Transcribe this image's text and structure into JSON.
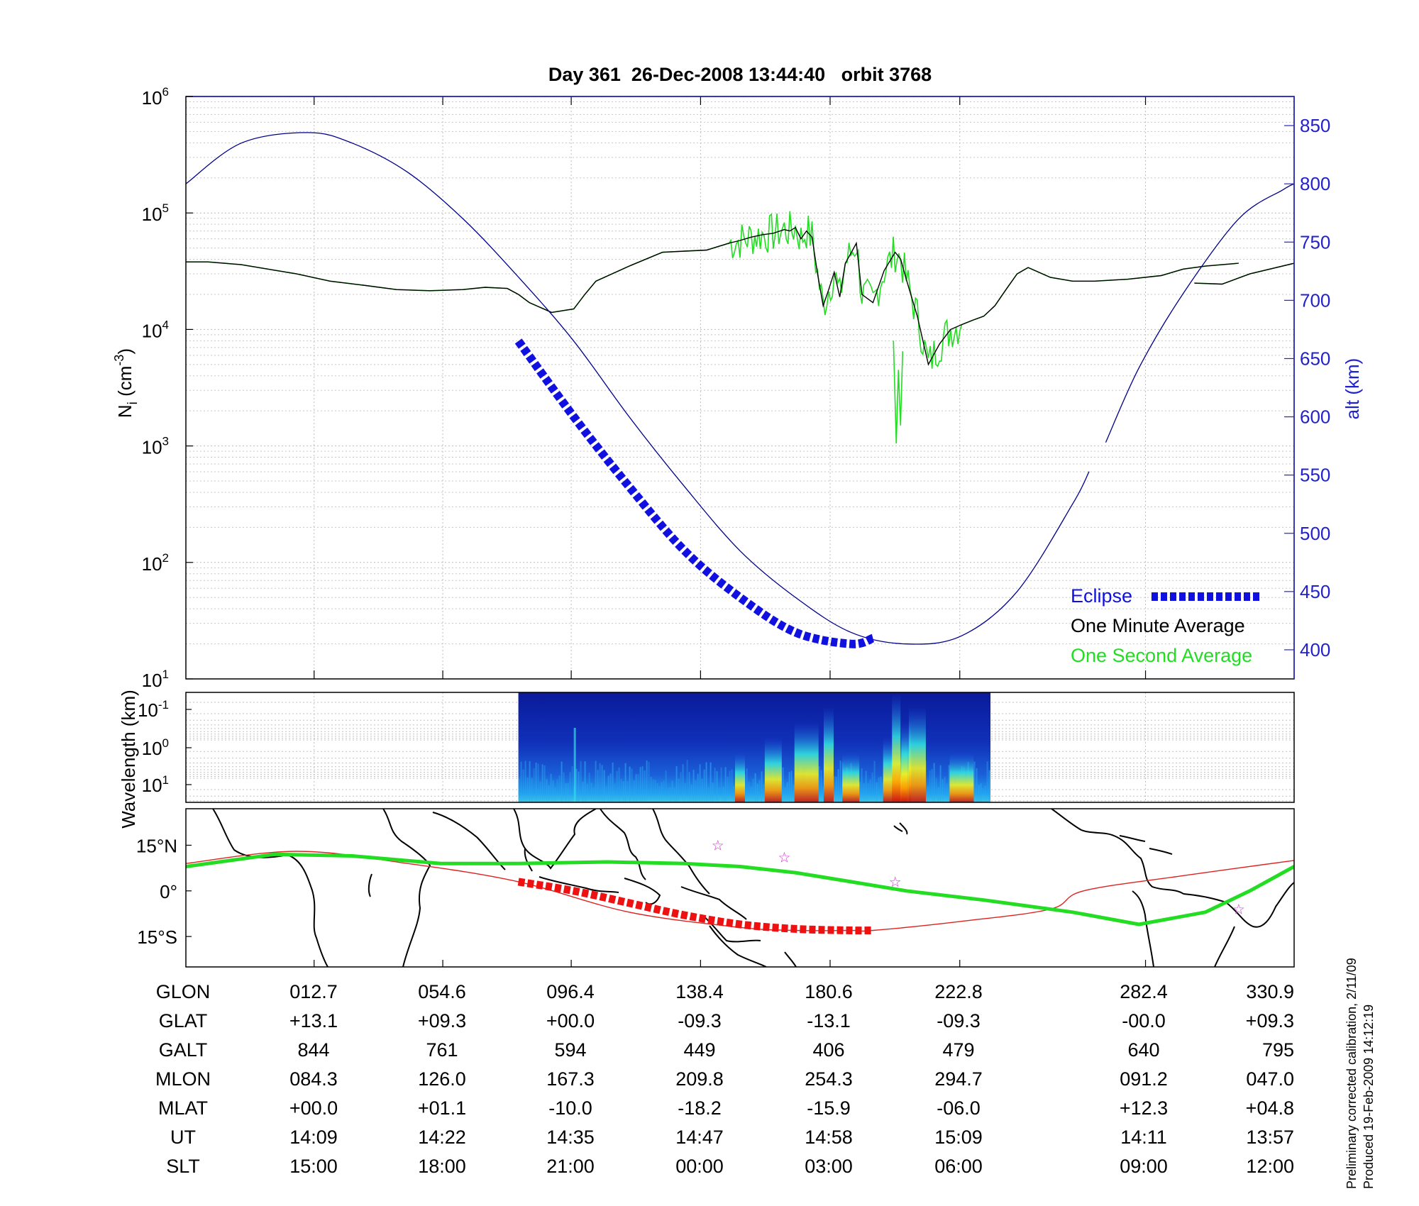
{
  "chart_data": [
    {
      "type": "line",
      "title": "Day 361  26-Dec-2008 13:44:40   orbit 3768",
      "yscale": "log",
      "ylabel": "N_i (cm^-3)",
      "ylim": [
        10,
        1000000
      ],
      "y_ticks": [
        {
          "base": "10",
          "exp": "1",
          "value": 10
        },
        {
          "base": "10",
          "exp": "2",
          "value": 100
        },
        {
          "base": "10",
          "exp": "3",
          "value": 1000
        },
        {
          "base": "10",
          "exp": "4",
          "value": 10000
        },
        {
          "base": "10",
          "exp": "5",
          "value": 100000
        },
        {
          "base": "10",
          "exp": "6",
          "value": 1000000
        }
      ],
      "y2label": "alt (km)",
      "y2lim": [
        375,
        875
      ],
      "y2_ticks": [
        "400",
        "450",
        "500",
        "550",
        "600",
        "650",
        "700",
        "750",
        "800",
        "850"
      ],
      "grid": true,
      "legend_position": "bottom-right",
      "legend": [
        {
          "label": "Eclipse",
          "color": "#1010e0"
        },
        {
          "label": "One Minute Average",
          "color": "#000000"
        },
        {
          "label": "One Second Average",
          "color": "#22dd22"
        }
      ],
      "series": [
        {
          "name": "One Minute Average",
          "axis": "left",
          "color": "#000000",
          "x": [
            0,
            0.02,
            0.05,
            0.1,
            0.13,
            0.16,
            0.19,
            0.22,
            0.25,
            0.27,
            0.29,
            0.3,
            0.31,
            0.33,
            0.35,
            0.36,
            0.37,
            0.4,
            0.43,
            0.45,
            0.47,
            0.49,
            0.5,
            0.51,
            0.52,
            0.53,
            0.54,
            0.545,
            0.55,
            0.555,
            0.56,
            0.565,
            0.57,
            0.575,
            0.58,
            0.585,
            0.59,
            0.595,
            0.6,
            0.605,
            0.61,
            0.62,
            0.63,
            0.64,
            0.645,
            0.65,
            0.66,
            0.67,
            0.68,
            0.69,
            0.7,
            0.71,
            0.72,
            0.73,
            0.74,
            0.75,
            0.76,
            0.78,
            0.8,
            0.82,
            0.85,
            0.88,
            0.9,
            0.92,
            0.95,
            0.99,
            0.99,
            0.91,
            0.935,
            0.96,
            1.0
          ],
          "y": [
            38000,
            38000,
            36000,
            30000,
            26000,
            24000,
            22000,
            21500,
            22000,
            23000,
            22500,
            20000,
            17000,
            14000,
            15000,
            20000,
            26000,
            35000,
            46000,
            47000,
            48000,
            55000,
            58000,
            62000,
            65000,
            67000,
            72000,
            70000,
            75000,
            60000,
            70000,
            62000,
            30000,
            16000,
            22000,
            31000,
            19000,
            37000,
            45000,
            55000,
            20000,
            17000,
            32000,
            46000,
            40000,
            27000,
            13000,
            5000,
            7500,
            10000,
            11000,
            12000,
            13000,
            16000,
            22000,
            30000,
            34000,
            28000,
            26000,
            26000,
            27000,
            29000,
            33000,
            35000,
            37000,
            null,
            null,
            25000,
            24500,
            30000,
            37000
          ]
        },
        {
          "name": "One Second Average",
          "axis": "left",
          "color": "#22dd22",
          "note": "noisy one-second samples around the one-minute average; minimum near 1000"
        },
        {
          "name": "altitude",
          "axis": "right",
          "color": "#00008b",
          "x": [
            0,
            0.05,
            0.11,
            0.15,
            0.2,
            0.25,
            0.3,
            0.35,
            0.4,
            0.45,
            0.5,
            0.55,
            0.6,
            0.65,
            0.7,
            0.75,
            0.8,
            0.815,
            0.83,
            0.86,
            0.9,
            0.95,
            0.99,
            1.0
          ],
          "y": [
            800,
            835,
            844,
            835,
            810,
            770,
            720,
            665,
            600,
            540,
            485,
            445,
            415,
            405,
            412,
            450,
            525,
            553,
            578,
            642,
            706,
            770,
            795,
            800
          ]
        },
        {
          "name": "Eclipse",
          "axis": "right",
          "color": "#1010e0",
          "x": [
            0.3,
            0.35,
            0.4,
            0.45,
            0.5,
            0.55,
            0.6,
            0.62
          ],
          "y": [
            665,
            600,
            540,
            485,
            445,
            415,
            405,
            410
          ]
        }
      ]
    },
    {
      "type": "heatmap",
      "ylabel": "Wavelength (km)",
      "yscale": "log",
      "y_ticks": [
        {
          "base": "10",
          "exp": "-1"
        },
        {
          "base": "10",
          "exp": "0"
        },
        {
          "base": "10",
          "exp": "1"
        }
      ],
      "x_range_with_data": [
        0.3,
        0.726
      ],
      "colormap": "jet",
      "hot_spots_x": [
        0.5,
        0.53,
        0.56,
        0.58,
        0.6,
        0.64,
        0.65,
        0.66,
        0.7
      ]
    },
    {
      "type": "map",
      "y_ticks": [
        "15°N",
        "0°",
        "15°S"
      ],
      "ylim": [
        -25,
        27
      ],
      "track": {
        "color": "#dd2222",
        "x": [
          0,
          0.1,
          0.2,
          0.3,
          0.4,
          0.5,
          0.55,
          0.6,
          0.62,
          0.7,
          0.78,
          0.81,
          0.9,
          1.0
        ],
        "y": [
          9,
          13,
          9,
          3,
          -7,
          -12,
          -13,
          -13,
          -13,
          -10,
          -6,
          0,
          5,
          10
        ]
      },
      "track_eclipse": {
        "color": "#ee1111",
        "x": [
          0.3,
          0.35,
          0.4,
          0.45,
          0.5,
          0.55,
          0.6,
          0.62
        ],
        "y": [
          3,
          0,
          -4,
          -8,
          -11,
          -12.5,
          -13,
          -13
        ]
      },
      "magnetic_equator": {
        "color": "#22dd22",
        "x": [
          0,
          0.08,
          0.15,
          0.23,
          0.3,
          0.38,
          0.45,
          0.5,
          0.55,
          0.6,
          0.65,
          0.72,
          0.8,
          0.86,
          0.92,
          0.96,
          1.0
        ],
        "y": [
          8,
          12,
          11.5,
          9,
          9,
          9.5,
          9,
          8,
          6,
          3,
          0,
          -3,
          -7,
          -11,
          -7,
          0,
          8
        ]
      },
      "stars": [
        {
          "x": 0.48,
          "y": 15
        },
        {
          "x": 0.54,
          "y": 11
        },
        {
          "x": 0.64,
          "y": 3
        },
        {
          "x": 0.95,
          "y": -6
        }
      ]
    }
  ],
  "table": {
    "row_labels": [
      "GLON",
      "GLAT",
      "GALT",
      "MLON",
      "MLAT",
      "UT",
      "SLT"
    ],
    "columns": [
      {
        "values": [
          "012.7",
          "+13.1",
          "844",
          "084.3",
          "+00.0",
          "14:09",
          "15:00"
        ]
      },
      {
        "values": [
          "054.6",
          "+09.3",
          "761",
          "126.0",
          "+01.1",
          "14:22",
          "18:00"
        ]
      },
      {
        "values": [
          "096.4",
          "+00.0",
          "594",
          "167.3",
          "-10.0",
          "14:35",
          "21:00"
        ]
      },
      {
        "values": [
          "138.4",
          "-09.3",
          "449",
          "209.8",
          "-18.2",
          "14:47",
          "00:00"
        ]
      },
      {
        "values": [
          "180.6",
          "-13.1",
          "406",
          "254.3",
          "-15.9",
          "14:58",
          "03:00"
        ]
      },
      {
        "values": [
          "222.8",
          "-09.3",
          "479",
          "294.7",
          "-06.0",
          "15:09",
          "06:00"
        ]
      },
      {
        "values": [
          "282.4",
          "-00.0",
          "640",
          "091.2",
          "+12.3",
          "14:11",
          "09:00"
        ]
      },
      {
        "values": [
          "330.9",
          "+09.3",
          "795",
          "047.0",
          "+04.8",
          "13:57",
          "12:00"
        ]
      }
    ]
  },
  "footnote": {
    "line1": "Preliminary corrected calibration, 2/11/09",
    "line2": "Produced 19-Feb-2009 14:12:19"
  }
}
